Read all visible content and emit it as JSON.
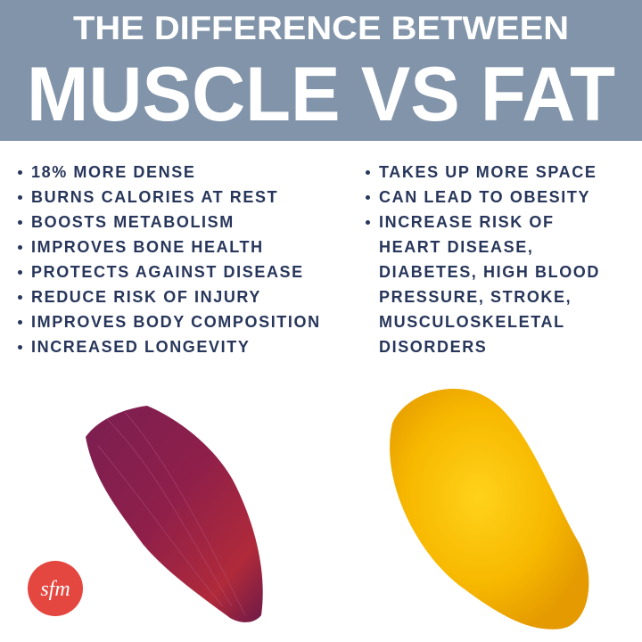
{
  "header": {
    "subtitle": "THE DIFFERENCE BETWEEN",
    "title": "MUSCLE VS FAT"
  },
  "muscle": {
    "items": [
      [
        "18% MORE DENSE"
      ],
      [
        "BURNS CALORIES AT REST"
      ],
      [
        "BOOSTS METABOLISM"
      ],
      [
        "IMPROVES BONE HEALTH"
      ],
      [
        "PROTECTS AGAINST DISEASE"
      ],
      [
        "REDUCE RISK OF INJURY"
      ],
      [
        "IMPROVES BODY COMPOSITION"
      ],
      [
        "INCREASED LONGEVITY"
      ]
    ]
  },
  "fat": {
    "items": [
      [
        "TAKES UP MORE SPACE"
      ],
      [
        "CAN LEAD TO OBESITY"
      ],
      [
        "INCREASE RISK OF",
        "HEART DISEASE,",
        "DIABETES, HIGH BLOOD",
        "PRESSURE, STROKE,",
        "MUSCULOSKELETAL",
        "DISORDERS"
      ]
    ]
  },
  "logo": "sfm"
}
